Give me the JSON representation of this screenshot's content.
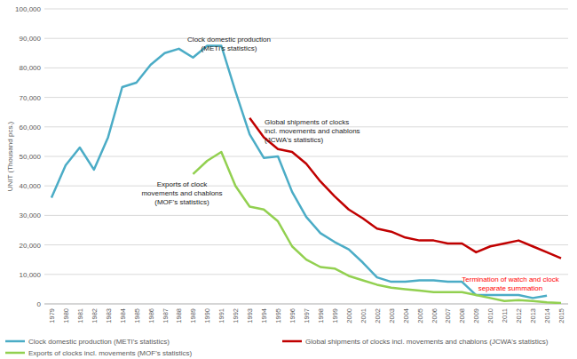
{
  "chart_data": {
    "type": "line",
    "y_label": "UNIT (Thousand pcs.)",
    "categories": [
      "1979",
      "1980",
      "1981",
      "1982",
      "1983",
      "1984",
      "1985",
      "1986",
      "1987",
      "1988",
      "1989",
      "1990",
      "1991",
      "1992",
      "1993",
      "1994",
      "1995",
      "1996",
      "1997",
      "1998",
      "1999",
      "2000",
      "2001",
      "2002",
      "2003",
      "2004",
      "2005",
      "2006",
      "2007",
      "2008",
      "2009",
      "2010",
      "2011",
      "2012",
      "2013",
      "2014",
      "2015"
    ],
    "ylim": [
      0,
      100000
    ],
    "yticks": [
      0,
      {
        "value": 10000,
        "label": "10,000"
      },
      {
        "value": 20000,
        "label": "20,000"
      },
      {
        "value": 30000,
        "label": "30,000"
      },
      {
        "value": 40000,
        "label": "40,000"
      },
      {
        "value": 50000,
        "label": "50,000"
      },
      {
        "value": 60000,
        "label": "60,000"
      },
      {
        "value": 70000,
        "label": "70,000"
      },
      {
        "value": 80000,
        "label": "80,000"
      },
      {
        "value": 90000,
        "label": "90,000"
      },
      {
        "value": 100000,
        "label": "100,000"
      }
    ],
    "grid": true,
    "legend": "bottom",
    "series": [
      {
        "name": "Clock domestic production (METI's statistics)",
        "color": "#4bacc6",
        "values": [
          36000,
          47000,
          53000,
          45500,
          56500,
          73500,
          75000,
          81000,
          85000,
          86500,
          83500,
          87500,
          87500,
          72000,
          57500,
          49500,
          50000,
          38000,
          29500,
          24000,
          21000,
          18500,
          14000,
          9000,
          7500,
          7500,
          8000,
          8000,
          7500,
          7500,
          3000,
          3000,
          3000,
          3000,
          2000,
          2800,
          null
        ]
      },
      {
        "name": "Global shipments of clocks incl. movements and chablons (JCWA's statistics)",
        "color": "#c00000",
        "values": [
          null,
          null,
          null,
          null,
          null,
          null,
          null,
          null,
          null,
          null,
          null,
          null,
          null,
          null,
          63000,
          56500,
          52500,
          51500,
          47500,
          41500,
          36500,
          32000,
          29000,
          25500,
          24500,
          22500,
          21500,
          21500,
          20500,
          20500,
          17500,
          19500,
          20500,
          21500,
          19500,
          17500,
          15500
        ]
      },
      {
        "name": "Exports of clocks incl. movements (MOF's statistics)",
        "color": "#92d050",
        "values": [
          null,
          null,
          null,
          null,
          null,
          null,
          null,
          null,
          null,
          null,
          44000,
          48500,
          51500,
          40000,
          33000,
          32000,
          28000,
          19500,
          15000,
          12500,
          12000,
          9500,
          8000,
          6500,
          5500,
          5000,
          4500,
          4000,
          4000,
          4000,
          3000,
          2000,
          1000,
          1300,
          1000,
          500,
          300
        ]
      }
    ],
    "annotations": [
      {
        "lines": [
          "Clock domestic production",
          "(METI's statistics)"
        ],
        "color": "#222222"
      },
      {
        "lines": [
          "Global shipments of clocks",
          "incl. movements and chablons",
          "(JCWA's statistics)"
        ],
        "color": "#222222"
      },
      {
        "lines": [
          "Exports of clock",
          "movements and chablons",
          "(MOF's statistics)"
        ],
        "color": "#222222"
      },
      {
        "lines": [
          "Termination of watch and clock",
          "separate summation"
        ],
        "color": "#ff0000"
      }
    ]
  }
}
